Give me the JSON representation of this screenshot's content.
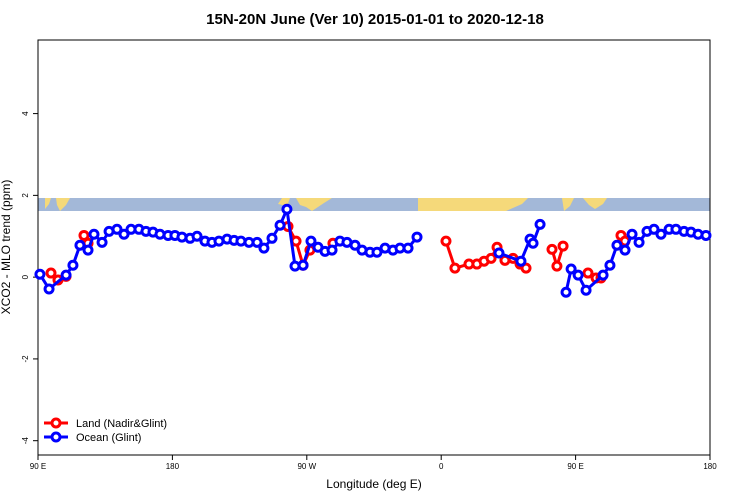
{
  "chart_data": {
    "type": "line",
    "title": "15N-20N June (Ver 10)   2015-01-01 to 2020-12-18",
    "xlabel": "Longitude (deg E)",
    "ylabel": "XCO2 - MLO trend (ppm)",
    "xlim": [
      90,
      540
    ],
    "xticks": [
      {
        "value": 90,
        "label": "90 E"
      },
      {
        "value": 180,
        "label": "180"
      },
      {
        "value": 270,
        "label": "90 W"
      },
      {
        "value": 360,
        "label": "0"
      },
      {
        "value": 450,
        "label": "90 E"
      },
      {
        "value": 540,
        "label": "180"
      }
    ],
    "ylim": [
      -4.35,
      5.8
    ],
    "yticks": [
      -4,
      -2,
      0,
      2,
      4
    ],
    "legend": "bottom-left",
    "series": [
      {
        "name": "Land (Nadir&Glint)",
        "color": "#ff0000",
        "x": [
          98.7,
          103.4,
          108.8,
          114.8,
          120.8,
          123.5,
          198.5,
          257.4,
          262.8,
          267.5,
          272.1,
          282.2,
          287.5,
          350,
          363.2,
          369.2,
          378.6,
          383.9,
          388.7,
          393.4,
          397.4,
          402.7,
          408.1,
          412.8,
          416.8,
          426.2,
          434.2,
          437.5,
          441.6,
          449.6,
          458.3,
          463.7,
          467.0,
          473.0,
          480.4,
          483.1
        ],
        "values": [
          0.1,
          -0.07,
          0.02,
          null,
          1.02,
          0.83,
          null,
          1.24,
          0.88,
          0.29,
          0.66,
          null,
          0.83,
          null,
          0.88,
          0.22,
          0.32,
          0.32,
          0.39,
          0.46,
          0.73,
          0.41,
          0.46,
          0.32,
          0.22,
          null,
          0.68,
          0.27,
          0.76,
          null,
          0.1,
          -0.02,
          -0.02,
          null,
          1.02,
          0.88
        ]
      },
      {
        "name": "Ocean (Glint)",
        "color": "#0000ff",
        "x": [
          91.3,
          97.4,
          108.8,
          113.4,
          118.1,
          123.5,
          127.5,
          132.9,
          137.6,
          142.9,
          147.6,
          152.3,
          157.6,
          162.3,
          167.0,
          171.7,
          177.1,
          181.7,
          186.4,
          191.8,
          196.5,
          201.8,
          206.5,
          211.2,
          216.6,
          221.3,
          225.9,
          231.3,
          236.7,
          241.3,
          246.7,
          252.1,
          256.7,
          262.1,
          267.5,
          272.8,
          277.5,
          282.2,
          286.9,
          292.2,
          296.9,
          302.3,
          307.0,
          312.3,
          317.0,
          322.4,
          327.7,
          332.4,
          337.8,
          343.8,
          372.6,
          398.7,
          413.4,
          419.5,
          421.5,
          426.2,
          434.9,
          443.6,
          447.0,
          451.7,
          457.0,
          468.4,
          473.0,
          477.7,
          483.1,
          487.8,
          492.5,
          497.8,
          502.5,
          507.2,
          512.6,
          517.2,
          522.6,
          527.3,
          532.0,
          537.3
        ],
        "values": [
          0.07,
          -0.29,
          0.05,
          0.29,
          0.78,
          0.66,
          1.05,
          0.85,
          1.12,
          1.17,
          1.05,
          1.17,
          1.17,
          1.12,
          1.1,
          1.05,
          1.02,
          1.02,
          0.98,
          0.95,
          1.0,
          0.88,
          0.85,
          0.88,
          0.93,
          0.9,
          0.88,
          0.85,
          0.85,
          0.71,
          0.95,
          1.27,
          1.66,
          0.27,
          0.29,
          0.88,
          0.73,
          0.63,
          0.66,
          0.88,
          0.85,
          0.78,
          0.66,
          0.61,
          0.61,
          0.71,
          0.66,
          0.71,
          0.71,
          0.98,
          null,
          0.59,
          0.39,
          0.93,
          0.83,
          1.29,
          null,
          -0.37,
          0.2,
          0.05,
          -0.32,
          0.05,
          0.29,
          0.78,
          0.66,
          1.05,
          0.85,
          1.12,
          1.17,
          1.05,
          1.17,
          1.17,
          1.12,
          1.1,
          1.05,
          1.02
        ]
      }
    ]
  }
}
